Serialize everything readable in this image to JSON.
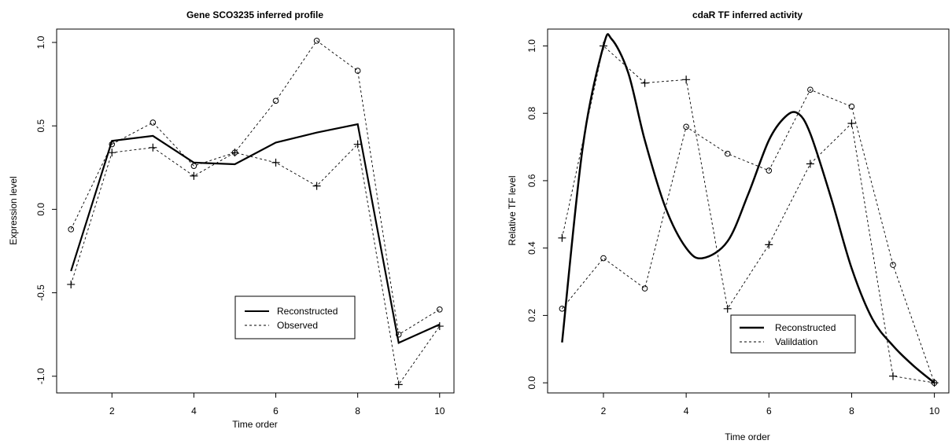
{
  "chart_data": [
    {
      "type": "line",
      "title": "Gene SCO3235 inferred profile",
      "xlabel": "Time order",
      "ylabel": "Expression level",
      "xlim": [
        0.65,
        10.35
      ],
      "ylim": [
        -1.1,
        1.08
      ],
      "x_ticks": [
        2,
        4,
        6,
        8,
        10
      ],
      "y_ticks": [
        -1.0,
        -0.5,
        0.0,
        0.5,
        1.0
      ],
      "y_tick_labels": [
        "-1.0",
        "-0.5",
        "0.0",
        "0.5",
        "1.0"
      ],
      "legend": {
        "position": "bottom-right",
        "entries": [
          "Reconstructed",
          "Observed"
        ]
      },
      "series": [
        {
          "name": "Reconstructed",
          "style": "solid-thick",
          "x": [
            1,
            2,
            3,
            4,
            5,
            6,
            7,
            8,
            9,
            10
          ],
          "y": [
            -0.37,
            0.41,
            0.44,
            0.28,
            0.27,
            0.4,
            0.46,
            0.51,
            -0.8,
            -0.69
          ]
        },
        {
          "name": "Observed",
          "style": "dashed-circle",
          "x": [
            1,
            2,
            3,
            4,
            5,
            6,
            7,
            8,
            9,
            10
          ],
          "y": [
            -0.12,
            0.39,
            0.52,
            0.26,
            0.34,
            0.65,
            1.01,
            0.83,
            -0.75,
            -0.6
          ]
        },
        {
          "name": "Observed",
          "style": "dashed-plus",
          "x": [
            1,
            2,
            3,
            4,
            5,
            6,
            7,
            8,
            9,
            10
          ],
          "y": [
            -0.45,
            0.34,
            0.37,
            0.2,
            0.34,
            0.28,
            0.14,
            0.39,
            -1.05,
            -0.7
          ]
        }
      ]
    },
    {
      "type": "line",
      "title": "cdaR TF inferred activity",
      "xlabel": "Time order",
      "ylabel": "Relative TF level",
      "xlim": [
        0.65,
        10.35
      ],
      "ylim": [
        -0.03,
        1.05
      ],
      "x_ticks": [
        2,
        4,
        6,
        8,
        10
      ],
      "y_ticks": [
        0.0,
        0.2,
        0.4,
        0.6,
        0.8,
        1.0
      ],
      "y_tick_labels": [
        "0.0",
        "0.2",
        "0.4",
        "0.6",
        "0.8",
        "1.0"
      ],
      "legend": {
        "position": "bottom-right",
        "entries": [
          "Reconstructed",
          "Valildation"
        ]
      },
      "series": [
        {
          "name": "Reconstructed",
          "style": "smooth-thick",
          "x": [
            1,
            1.5,
            2,
            2.2,
            2.6,
            3.0,
            3.5,
            4.0,
            4.4,
            5.0,
            5.5,
            6.0,
            6.4,
            6.7,
            7.0,
            7.5,
            8.0,
            8.5,
            9.0,
            9.5,
            10.0
          ],
          "y": [
            0.12,
            0.7,
            1.0,
            1.02,
            0.92,
            0.72,
            0.52,
            0.4,
            0.37,
            0.42,
            0.56,
            0.72,
            0.79,
            0.8,
            0.74,
            0.55,
            0.34,
            0.19,
            0.11,
            0.05,
            0.0
          ]
        },
        {
          "name": "Valildation",
          "style": "dashed-circle",
          "x": [
            1,
            2,
            3,
            4,
            5,
            6,
            7,
            8,
            9,
            10
          ],
          "y": [
            0.22,
            0.37,
            0.28,
            0.76,
            0.68,
            0.63,
            0.87,
            0.82,
            0.35,
            0.0
          ]
        },
        {
          "name": "Valildation",
          "style": "dashed-plus",
          "x": [
            1,
            2,
            3,
            4,
            5,
            6,
            7,
            8,
            9,
            10
          ],
          "y": [
            0.43,
            1.0,
            0.89,
            0.9,
            0.22,
            0.41,
            0.65,
            0.77,
            0.02,
            0.0
          ]
        }
      ]
    }
  ]
}
